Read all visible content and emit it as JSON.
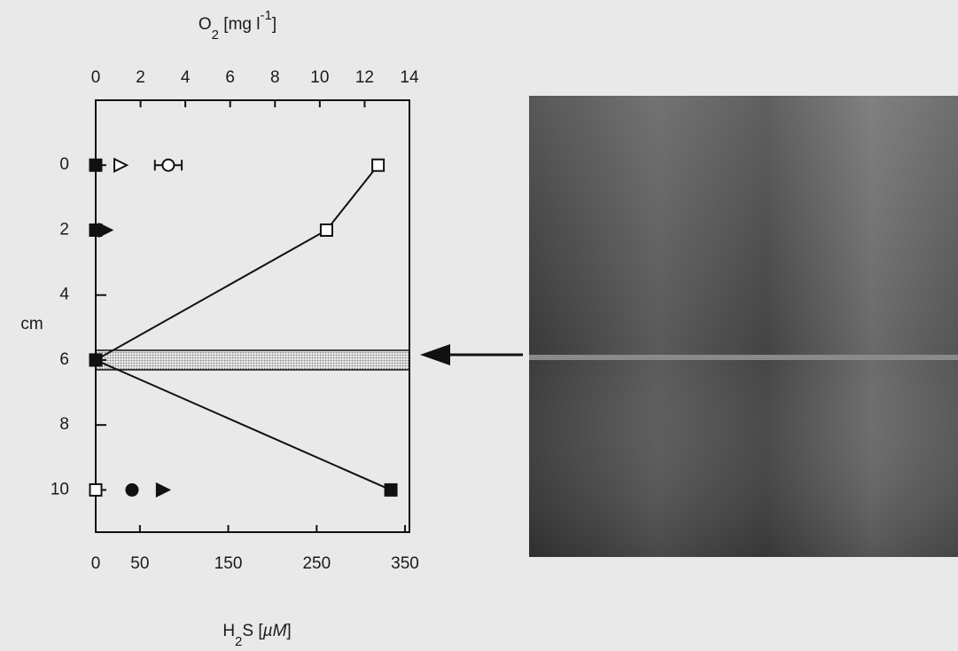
{
  "chart_data": {
    "type": "profile",
    "top_axis_label": [
      "O",
      "2",
      " [mg l",
      "-1",
      "]"
    ],
    "bottom_axis_label": [
      "H",
      "2",
      "S  [",
      "µM",
      "]"
    ],
    "y_axis_label": "cm",
    "y": [
      0,
      2,
      6,
      10
    ],
    "ylim": [
      -2,
      11.3
    ],
    "yticks": [
      0,
      2,
      4,
      6,
      8,
      10
    ],
    "xlim_top": [
      0,
      14
    ],
    "xticks_top": [
      0,
      2,
      4,
      6,
      8,
      10,
      12,
      14
    ],
    "xlim_bottom": [
      0,
      355
    ],
    "xticks_bottom": [
      0,
      50,
      150,
      250,
      350
    ],
    "highlight_depth": [
      5.7,
      6.3
    ],
    "series": [
      {
        "axis": "top",
        "marker": "square",
        "filled": [
          false,
          false,
          false,
          false
        ],
        "line": true,
        "values": [
          12.6,
          10.3,
          0,
          0
        ]
      },
      {
        "axis": "bottom",
        "marker": "square",
        "filled": [
          true,
          true,
          true,
          true
        ],
        "line": true,
        "values": [
          0,
          0,
          0,
          334
        ]
      },
      {
        "axis": "top",
        "marker": "triangle",
        "filled": [
          false,
          true,
          null,
          true
        ],
        "line": false,
        "values": [
          1.07,
          0.4,
          null,
          2.96
        ]
      },
      {
        "axis": "top",
        "marker": "circle",
        "filled": [
          false,
          null,
          null,
          true
        ],
        "line": false,
        "values": [
          3.24,
          null,
          null,
          1.62
        ],
        "errors": [
          0.6,
          null,
          null,
          null
        ]
      }
    ]
  }
}
